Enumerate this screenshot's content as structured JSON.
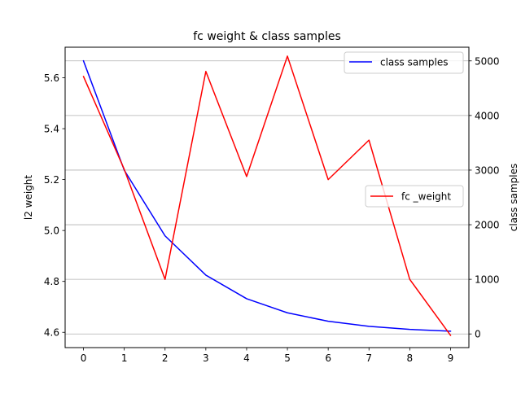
{
  "chart_data": {
    "type": "line",
    "title": "fc weight & class samples",
    "x": [
      0,
      1,
      2,
      3,
      4,
      5,
      6,
      7,
      8,
      9
    ],
    "xticks": [
      "0",
      "1",
      "2",
      "3",
      "4",
      "5",
      "6",
      "7",
      "8",
      "9"
    ],
    "xlim": [
      -0.45,
      9.45
    ],
    "left_axis": {
      "label": "l2 weight",
      "ylim": [
        4.54,
        5.72
      ],
      "ticks": [
        4.6,
        4.8,
        5.0,
        5.2,
        5.4,
        5.6
      ],
      "tick_labels": [
        "4.6",
        "4.8",
        "5.0",
        "5.2",
        "5.4",
        "5.6"
      ]
    },
    "right_axis": {
      "label": "class samples",
      "ylim": [
        -250,
        5250
      ],
      "ticks": [
        0,
        1000,
        2000,
        3000,
        4000,
        5000
      ],
      "tick_labels": [
        "0",
        "1000",
        "2000",
        "3000",
        "4000",
        "5000"
      ]
    },
    "grid": "horizontal, right axis",
    "series": [
      {
        "name": "class samples",
        "axis": "right",
        "color": "#0000ff",
        "values": [
          5000,
          2997,
          1796,
          1077,
          645,
          387,
          232,
          139,
          83,
          50
        ],
        "legend_position": "upper right"
      },
      {
        "name": "fc _weight",
        "axis": "left",
        "color": "#ff0000",
        "values": [
          5.605,
          5.24,
          4.808,
          5.625,
          5.212,
          5.685,
          5.2,
          5.355,
          4.808,
          4.588
        ],
        "legend_position": "center right"
      }
    ]
  }
}
